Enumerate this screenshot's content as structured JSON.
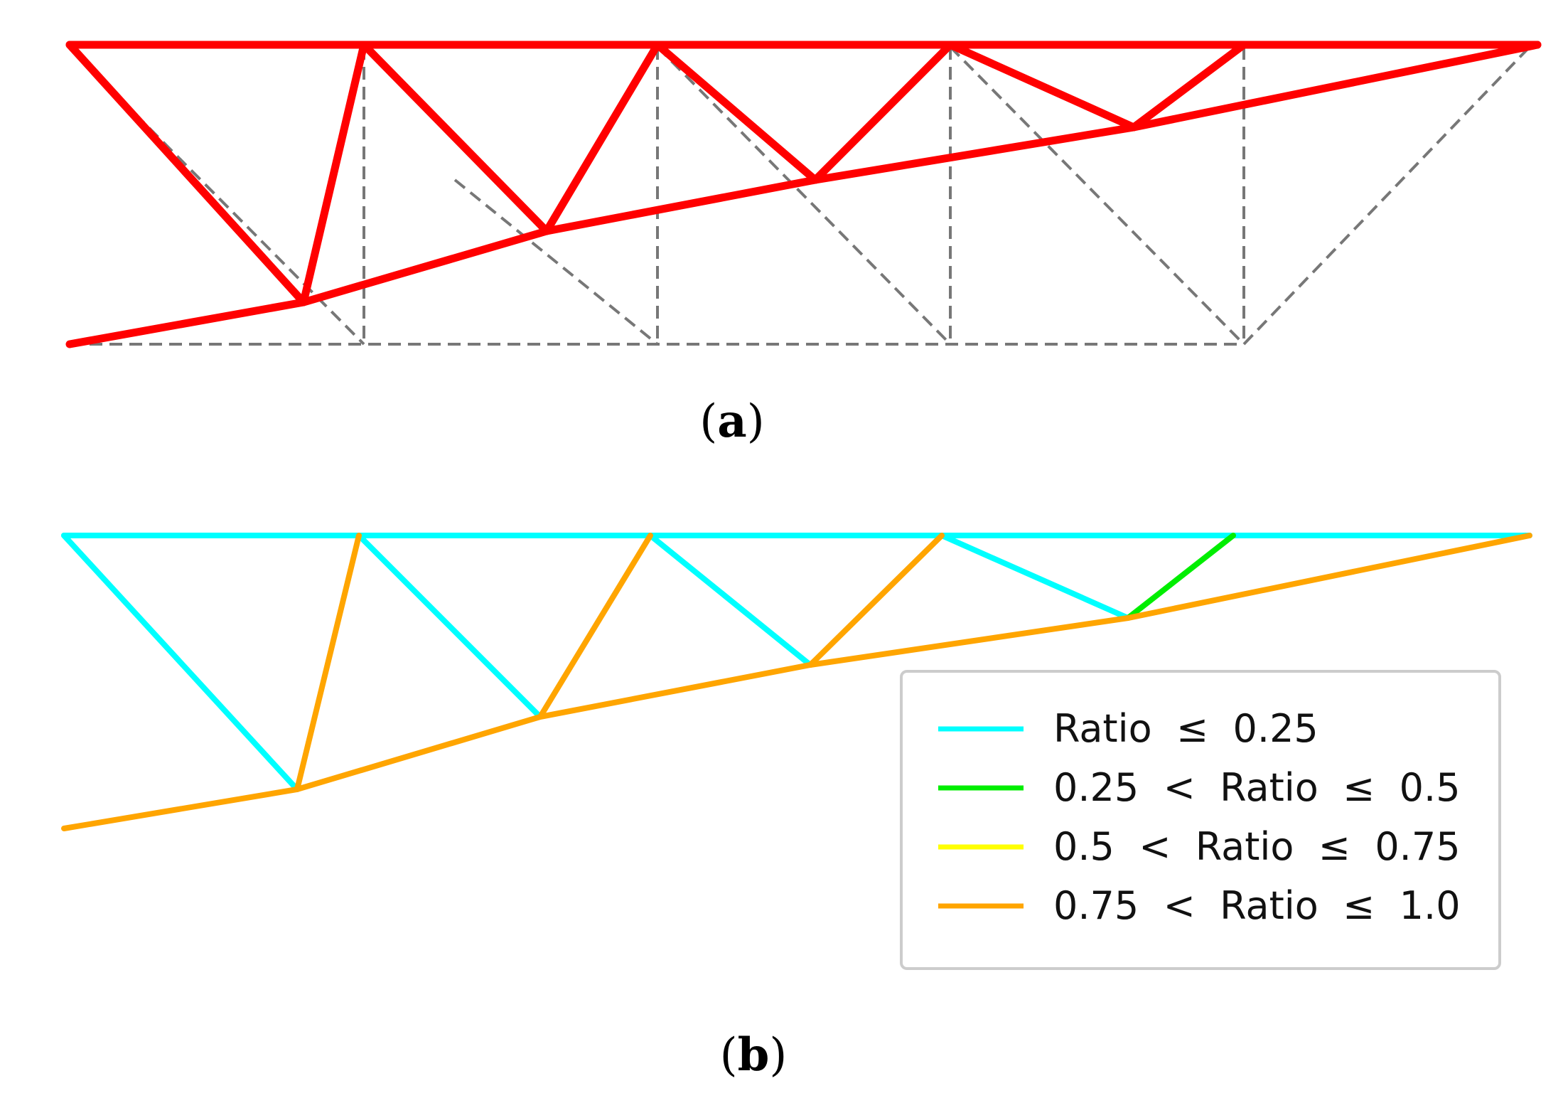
{
  "panel_a": {
    "label": "a",
    "colors": {
      "optimized": "#ff0000",
      "ground": "#777777"
    }
  },
  "panel_b": {
    "label": "b",
    "legend": {
      "items": [
        {
          "label": "Ratio  ≤  0.25",
          "color": "#00ffff"
        },
        {
          "label": "0.25  <  Ratio  ≤  0.5",
          "color": "#00ff00"
        },
        {
          "label": "0.5  <  Ratio  ≤  0.75",
          "color": "#ffff00"
        },
        {
          "label": "0.75  <  Ratio  ≤  1.0",
          "color": "#ffa500"
        }
      ]
    }
  }
}
